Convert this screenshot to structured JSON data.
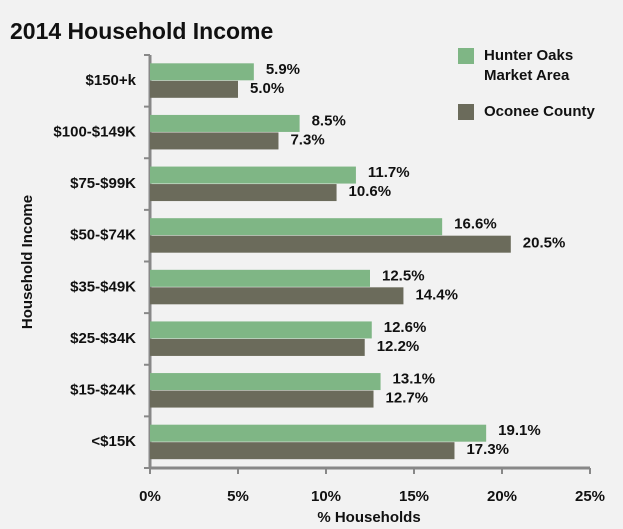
{
  "chart_data": {
    "type": "hbar",
    "title": "2014 Household Income",
    "ylabel": "Household Income",
    "xlabel": "% Households",
    "categories": [
      "$150+k",
      "$100-$149K",
      "$75-$99K",
      "$50-$74K",
      "$35-$49K",
      "$25-$34K",
      "$15-$24K",
      "<$15K"
    ],
    "series": [
      {
        "name": "Hunter Oaks Market Area",
        "color": "#7fb685",
        "values": [
          5.9,
          8.5,
          11.7,
          16.6,
          12.5,
          12.6,
          13.1,
          19.1
        ],
        "value_labels": [
          "5.9%",
          "8.5%",
          "11.7%",
          "16.6%",
          "12.5%",
          "12.6%",
          "13.1%",
          "19.1%"
        ]
      },
      {
        "name": "Oconee County",
        "color": "#6b6b5b",
        "values": [
          5.0,
          7.3,
          10.6,
          20.5,
          14.4,
          12.2,
          12.7,
          17.3
        ],
        "value_labels": [
          "5.0%",
          "7.3%",
          "10.6%",
          "20.5%",
          "14.4%",
          "12.2%",
          "12.7%",
          "17.3%"
        ]
      }
    ],
    "xlim": [
      0,
      25
    ],
    "xticks": [
      {
        "value": 0,
        "label": "0%"
      },
      {
        "value": 5,
        "label": "5%"
      },
      {
        "value": 10,
        "label": "10%"
      },
      {
        "value": 15,
        "label": "15%"
      },
      {
        "value": 20,
        "label": "20%"
      },
      {
        "value": 25,
        "label": "25%"
      }
    ],
    "grid": false,
    "legend": "top-right"
  }
}
